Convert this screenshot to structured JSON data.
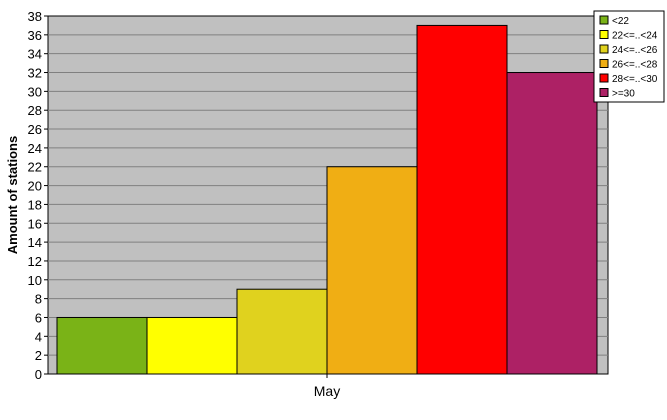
{
  "chart_data": {
    "type": "bar",
    "title": "",
    "xlabel": "",
    "ylabel": "Amount of stations",
    "categories": [
      "May"
    ],
    "ylim": [
      0,
      38
    ],
    "ytick_step": 2,
    "grid": true,
    "legend_position": "top-right",
    "plot_background": "#c0c0c0",
    "series": [
      {
        "name": "<22",
        "color": "#7ab317",
        "values": [
          6
        ]
      },
      {
        "name": "22<=..<24",
        "color": "#ffff00",
        "values": [
          6
        ]
      },
      {
        "name": "24<=..<26",
        "color": "#e0d21e",
        "values": [
          9
        ]
      },
      {
        "name": "26<=..<28",
        "color": "#f0ae14",
        "values": [
          22
        ]
      },
      {
        "name": "28<=..<30",
        "color": "#ff0000",
        "values": [
          37
        ]
      },
      {
        "name": ">=30",
        "color": "#ad2165",
        "values": [
          32
        ]
      }
    ]
  }
}
